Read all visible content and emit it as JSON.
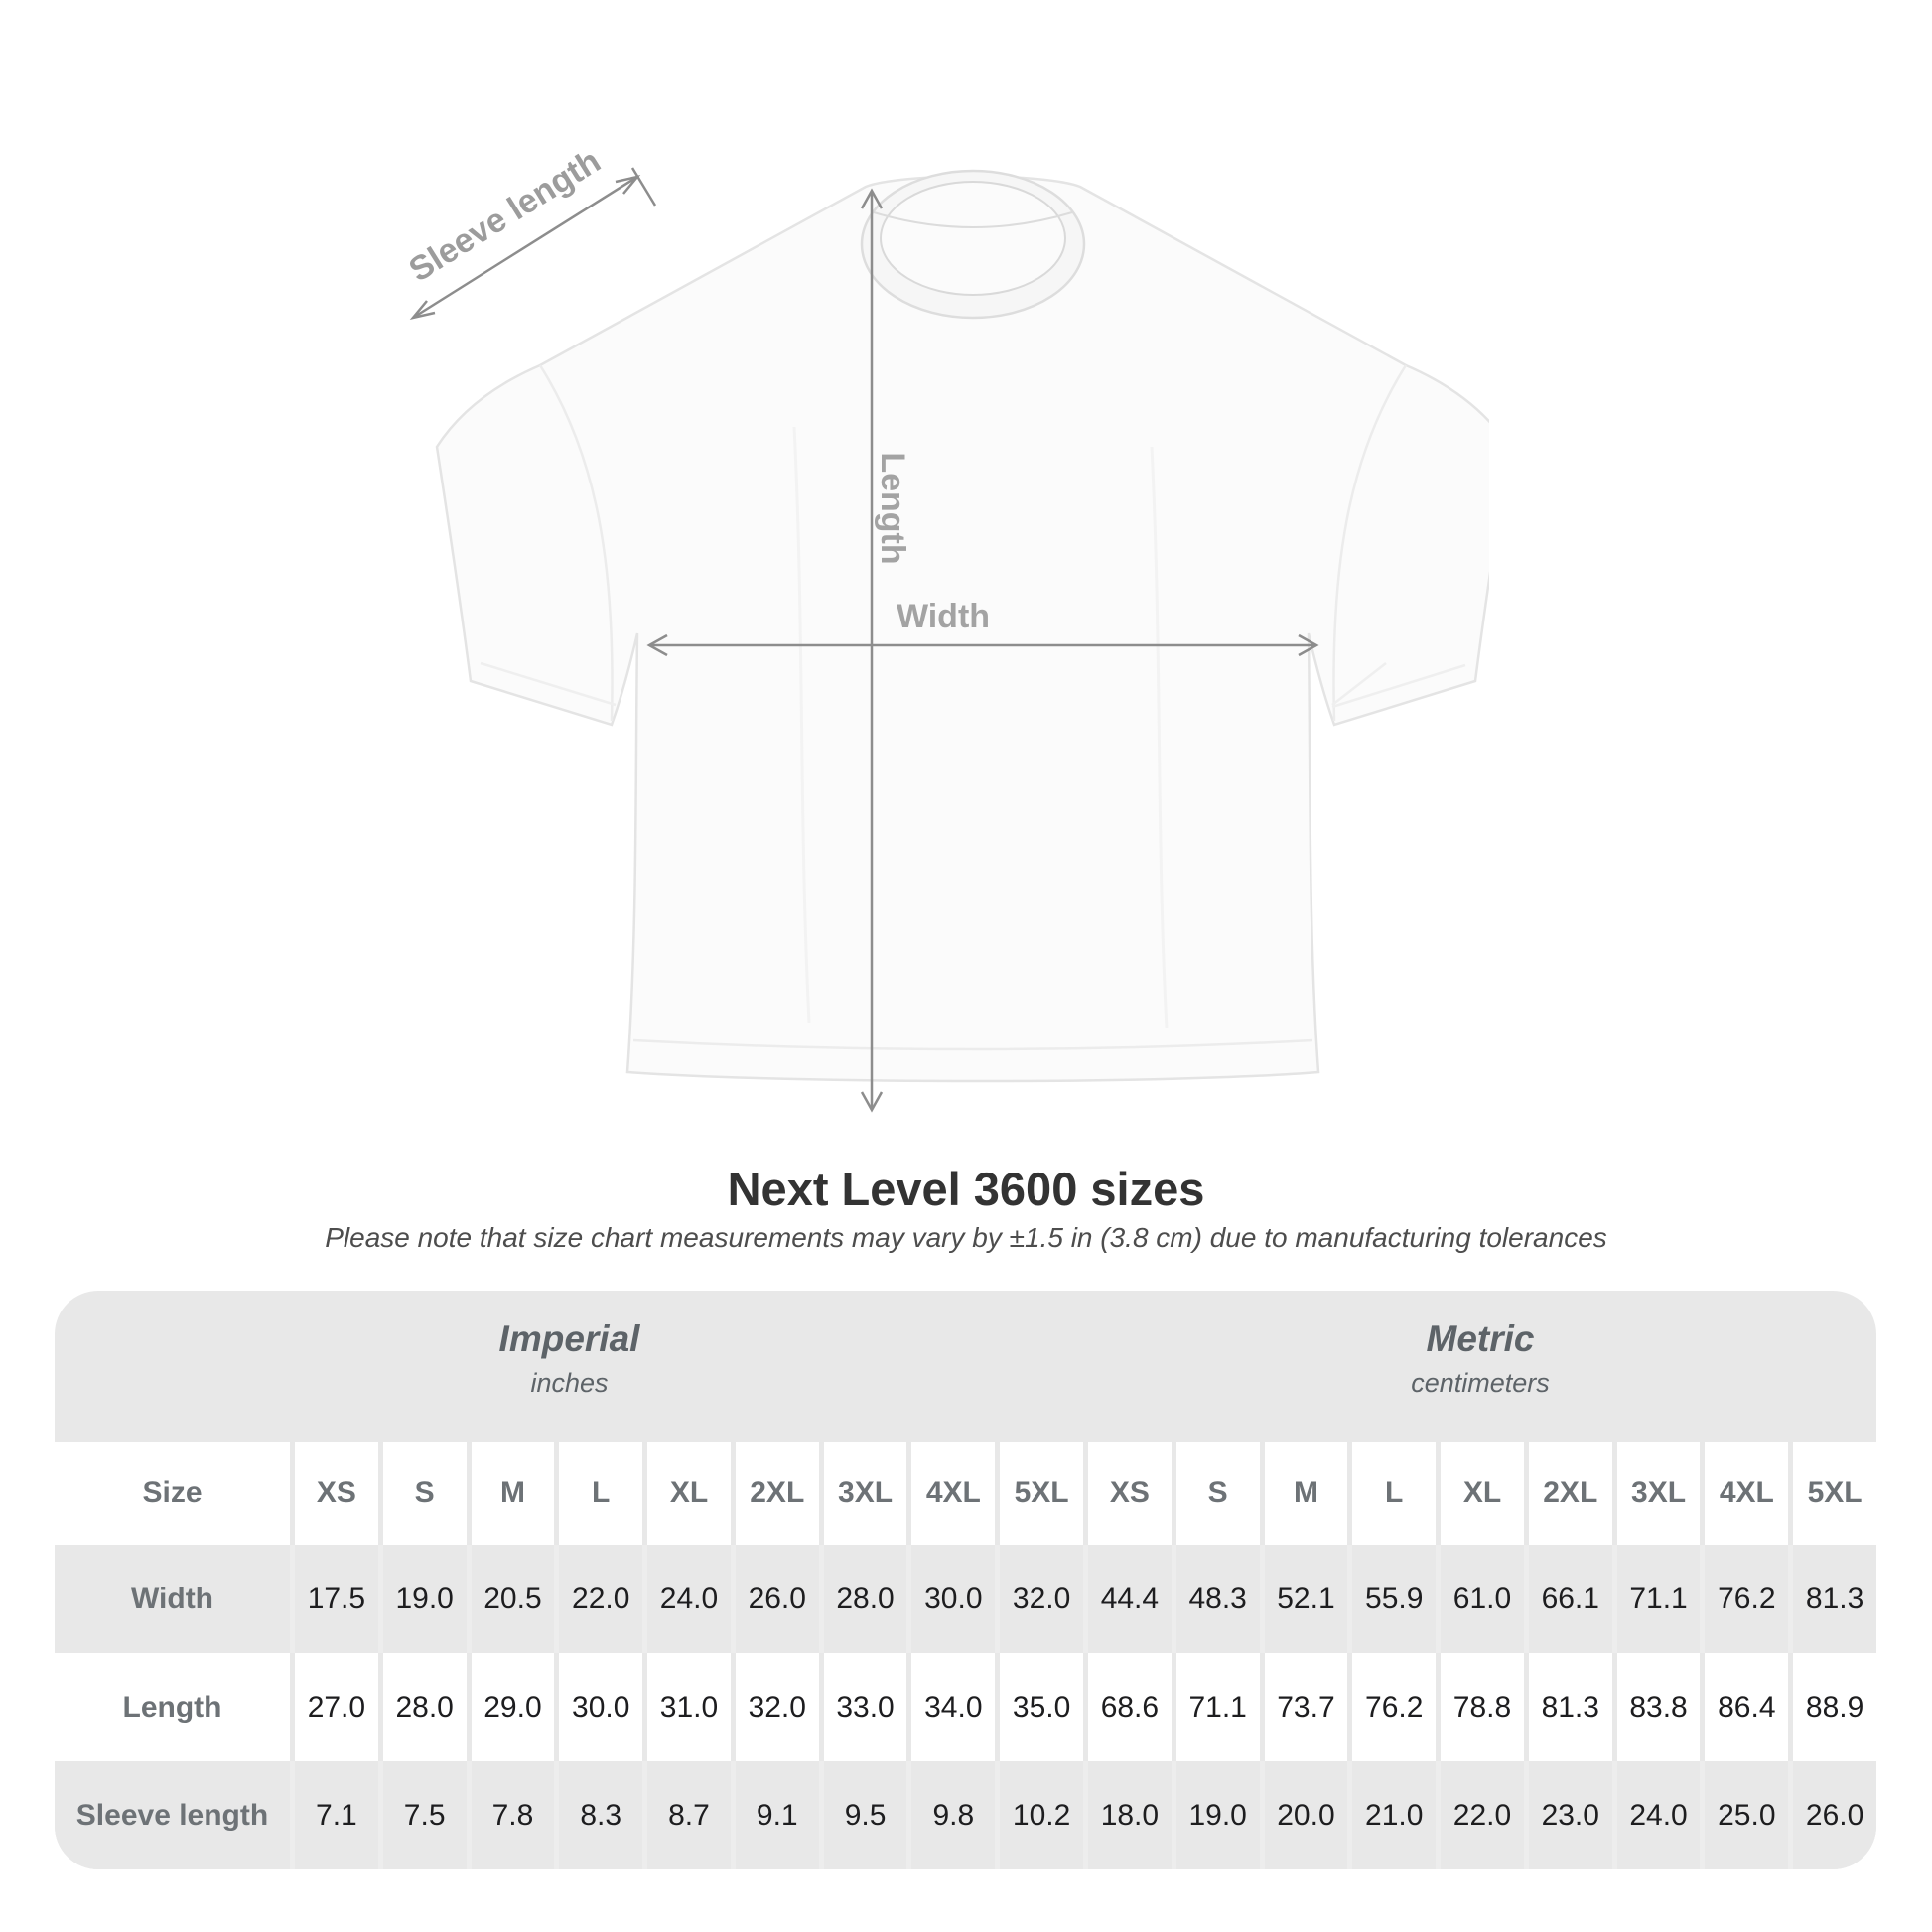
{
  "title": "Next Level 3600 sizes",
  "subtitle": "Please note that size chart measurements may vary by ±1.5 in (3.8 cm) due to manufacturing tolerances",
  "diagram": {
    "sleeve_length_label": "Sleeve length",
    "length_label": "Length",
    "width_label": "Width"
  },
  "table": {
    "unit_groups": [
      {
        "label": "Imperial",
        "sublabel": "inches"
      },
      {
        "label": "Metric",
        "sublabel": "centimeters"
      }
    ],
    "size_header_label": "Size",
    "sizes": [
      "XS",
      "S",
      "M",
      "L",
      "XL",
      "2XL",
      "3XL",
      "4XL",
      "5XL"
    ],
    "rows": [
      {
        "label": "Width",
        "imperial": [
          "17.5",
          "19.0",
          "20.5",
          "22.0",
          "24.0",
          "26.0",
          "28.0",
          "30.0",
          "32.0"
        ],
        "metric": [
          "44.4",
          "48.3",
          "52.1",
          "55.9",
          "61.0",
          "66.1",
          "71.1",
          "76.2",
          "81.3"
        ]
      },
      {
        "label": "Length",
        "imperial": [
          "27.0",
          "28.0",
          "29.0",
          "30.0",
          "31.0",
          "32.0",
          "33.0",
          "34.0",
          "35.0"
        ],
        "metric": [
          "68.6",
          "71.1",
          "73.7",
          "76.2",
          "78.8",
          "81.3",
          "83.8",
          "86.4",
          "88.9"
        ]
      },
      {
        "label": "Sleeve length",
        "imperial": [
          "7.1",
          "7.5",
          "7.8",
          "8.3",
          "8.7",
          "9.1",
          "9.5",
          "9.8",
          "10.2"
        ],
        "metric": [
          "18.0",
          "19.0",
          "20.0",
          "21.0",
          "22.0",
          "23.0",
          "24.0",
          "25.0",
          "26.0"
        ]
      }
    ]
  },
  "chart_data": {
    "type": "table",
    "title": "Next Level 3600 sizes",
    "note": "Please note that size chart measurements may vary by ±1.5 in (3.8 cm) due to manufacturing tolerances",
    "columns": [
      "XS",
      "S",
      "M",
      "L",
      "XL",
      "2XL",
      "3XL",
      "4XL",
      "5XL"
    ],
    "unit_groups": [
      "Imperial (inches)",
      "Metric (centimeters)"
    ],
    "rows": [
      {
        "label": "Width",
        "imperial": [
          17.5,
          19.0,
          20.5,
          22.0,
          24.0,
          26.0,
          28.0,
          30.0,
          32.0
        ],
        "metric": [
          44.4,
          48.3,
          52.1,
          55.9,
          61.0,
          66.1,
          71.1,
          76.2,
          81.3
        ]
      },
      {
        "label": "Length",
        "imperial": [
          27.0,
          28.0,
          29.0,
          30.0,
          31.0,
          32.0,
          33.0,
          34.0,
          35.0
        ],
        "metric": [
          68.6,
          71.1,
          73.7,
          76.2,
          78.8,
          81.3,
          83.8,
          86.4,
          88.9
        ]
      },
      {
        "label": "Sleeve length",
        "imperial": [
          7.1,
          7.5,
          7.8,
          8.3,
          8.7,
          9.1,
          9.5,
          9.8,
          10.2
        ],
        "metric": [
          18.0,
          19.0,
          20.0,
          21.0,
          22.0,
          23.0,
          24.0,
          25.0,
          26.0
        ]
      }
    ]
  },
  "colors": {
    "arrow_gray": "#8d8d8d",
    "diagram_label_gray": "#9c9c9c",
    "table_bg": "#e8e8e8",
    "header_text": "#6d7276",
    "value_text": "#1d1d1f",
    "title_text": "#333333"
  }
}
